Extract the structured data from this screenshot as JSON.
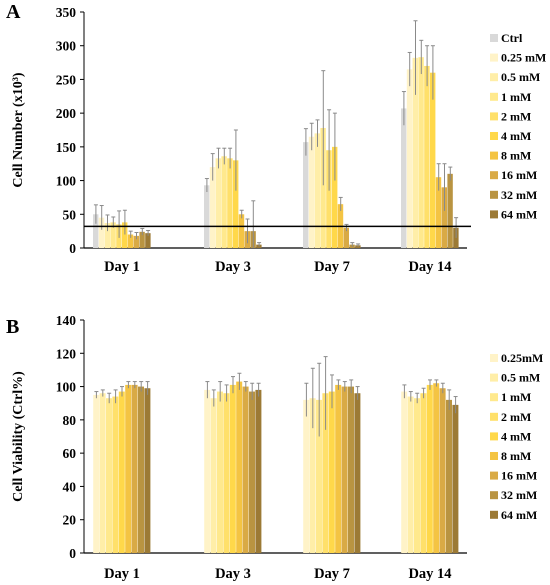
{
  "colors": {
    "ctrl": "#d9d9d9",
    "0.25 mM": "#fff3c8",
    "0.5 mM": "#ffeea8",
    "1 mM": "#ffe98d",
    "2 mM": "#ffe06a",
    "4 mM": "#ffd84a",
    "8 mM": "#f4c443",
    "16 mM": "#d9aa45",
    "32 mM": "#b99441",
    "64 mM": "#9c7a35",
    "error_bar": "#8a8a8a",
    "axis": "#000000"
  },
  "chart_data": [
    {
      "panel": "A",
      "type": "bar",
      "title": "",
      "ylabel": "Cell Number (x10³)",
      "xlabel": "",
      "ylim": [
        0,
        350
      ],
      "yticks": [
        0,
        50,
        100,
        150,
        200,
        250,
        300,
        350
      ],
      "categories": [
        "Day 1",
        "Day 3",
        "Day 7",
        "Day 14"
      ],
      "reference_line": 32,
      "legend_position": "right",
      "series": [
        {
          "name": "Ctrl",
          "color_key": "ctrl",
          "values": [
            50,
            93,
            157,
            207
          ],
          "errors": [
            14,
            10,
            20,
            25
          ]
        },
        {
          "name": "0.25 mM",
          "color_key": "0.25 mM",
          "values": [
            45,
            120,
            165,
            265
          ],
          "errors": [
            18,
            20,
            20,
            25
          ]
        },
        {
          "name": "0.5 mM",
          "color_key": "0.5 mM",
          "values": [
            37,
            133,
            170,
            282
          ],
          "errors": [
            12,
            15,
            20,
            55
          ]
        },
        {
          "name": "1 mM",
          "color_key": "1 mM",
          "values": [
            38,
            136,
            178,
            283
          ],
          "errors": [
            8,
            12,
            85,
            25
          ]
        },
        {
          "name": "2 mM",
          "color_key": "2 mM",
          "values": [
            35,
            133,
            145,
            270
          ],
          "errors": [
            20,
            15,
            60,
            30
          ]
        },
        {
          "name": "4 mM",
          "color_key": "4 mM",
          "values": [
            38,
            130,
            150,
            260
          ],
          "errors": [
            18,
            45,
            50,
            40
          ]
        },
        {
          "name": "8 mM",
          "color_key": "8 mM",
          "values": [
            20,
            50,
            65,
            105
          ],
          "errors": [
            5,
            6,
            10,
            20
          ]
        },
        {
          "name": "16 mM",
          "color_key": "16 mM",
          "values": [
            18,
            25,
            30,
            90
          ],
          "errors": [
            5,
            18,
            5,
            35
          ]
        },
        {
          "name": "32 mM",
          "color_key": "32 mM",
          "values": [
            24,
            25,
            5,
            110
          ],
          "errors": [
            5,
            45,
            3,
            10
          ]
        },
        {
          "name": "64 mM",
          "color_key": "64 mM",
          "values": [
            22,
            5,
            4,
            30
          ],
          "errors": [
            4,
            3,
            2,
            15
          ]
        }
      ]
    },
    {
      "panel": "B",
      "type": "bar",
      "title": "",
      "ylabel": "Cell Viability (Ctrl%)",
      "xlabel": "",
      "ylim": [
        0,
        140
      ],
      "yticks": [
        0,
        20,
        40,
        60,
        80,
        100,
        120,
        140
      ],
      "categories": [
        "Day 1",
        "Day 3",
        "Day 7",
        "Day 14"
      ],
      "legend_position": "right",
      "series": [
        {
          "name": "0.25mM",
          "color_key": "0.25 mM",
          "values": [
            95,
            98,
            92,
            97
          ],
          "errors": [
            2,
            5,
            10,
            4
          ]
        },
        {
          "name": "0.5 mM",
          "color_key": "0.5 mM",
          "values": [
            96,
            93,
            93,
            94
          ],
          "errors": [
            2,
            5,
            18,
            3
          ]
        },
        {
          "name": "1 mM",
          "color_key": "1 mM",
          "values": [
            93,
            97,
            92,
            93
          ],
          "errors": [
            3,
            6,
            22,
            3
          ]
        },
        {
          "name": "2 mM",
          "color_key": "2 mM",
          "values": [
            94,
            96,
            96,
            96
          ],
          "errors": [
            4,
            5,
            22,
            3
          ]
        },
        {
          "name": "4 mM",
          "color_key": "4 mM",
          "values": [
            97,
            101,
            97,
            101
          ],
          "errors": [
            3,
            5,
            10,
            3
          ]
        },
        {
          "name": "8 mM",
          "color_key": "8 mM",
          "values": [
            101,
            103,
            101,
            102
          ],
          "errors": [
            2,
            5,
            3,
            2
          ]
        },
        {
          "name": "16 mM",
          "color_key": "16 mM",
          "values": [
            101,
            100,
            100,
            99
          ],
          "errors": [
            2,
            3,
            3,
            3
          ]
        },
        {
          "name": "32 mM",
          "color_key": "32 mM",
          "values": [
            100,
            97,
            100,
            92
          ],
          "errors": [
            3,
            5,
            4,
            6
          ]
        },
        {
          "name": "64 mM",
          "color_key": "64 mM",
          "values": [
            99,
            98,
            96,
            89
          ],
          "errors": [
            4,
            4,
            4,
            5
          ]
        }
      ]
    }
  ]
}
